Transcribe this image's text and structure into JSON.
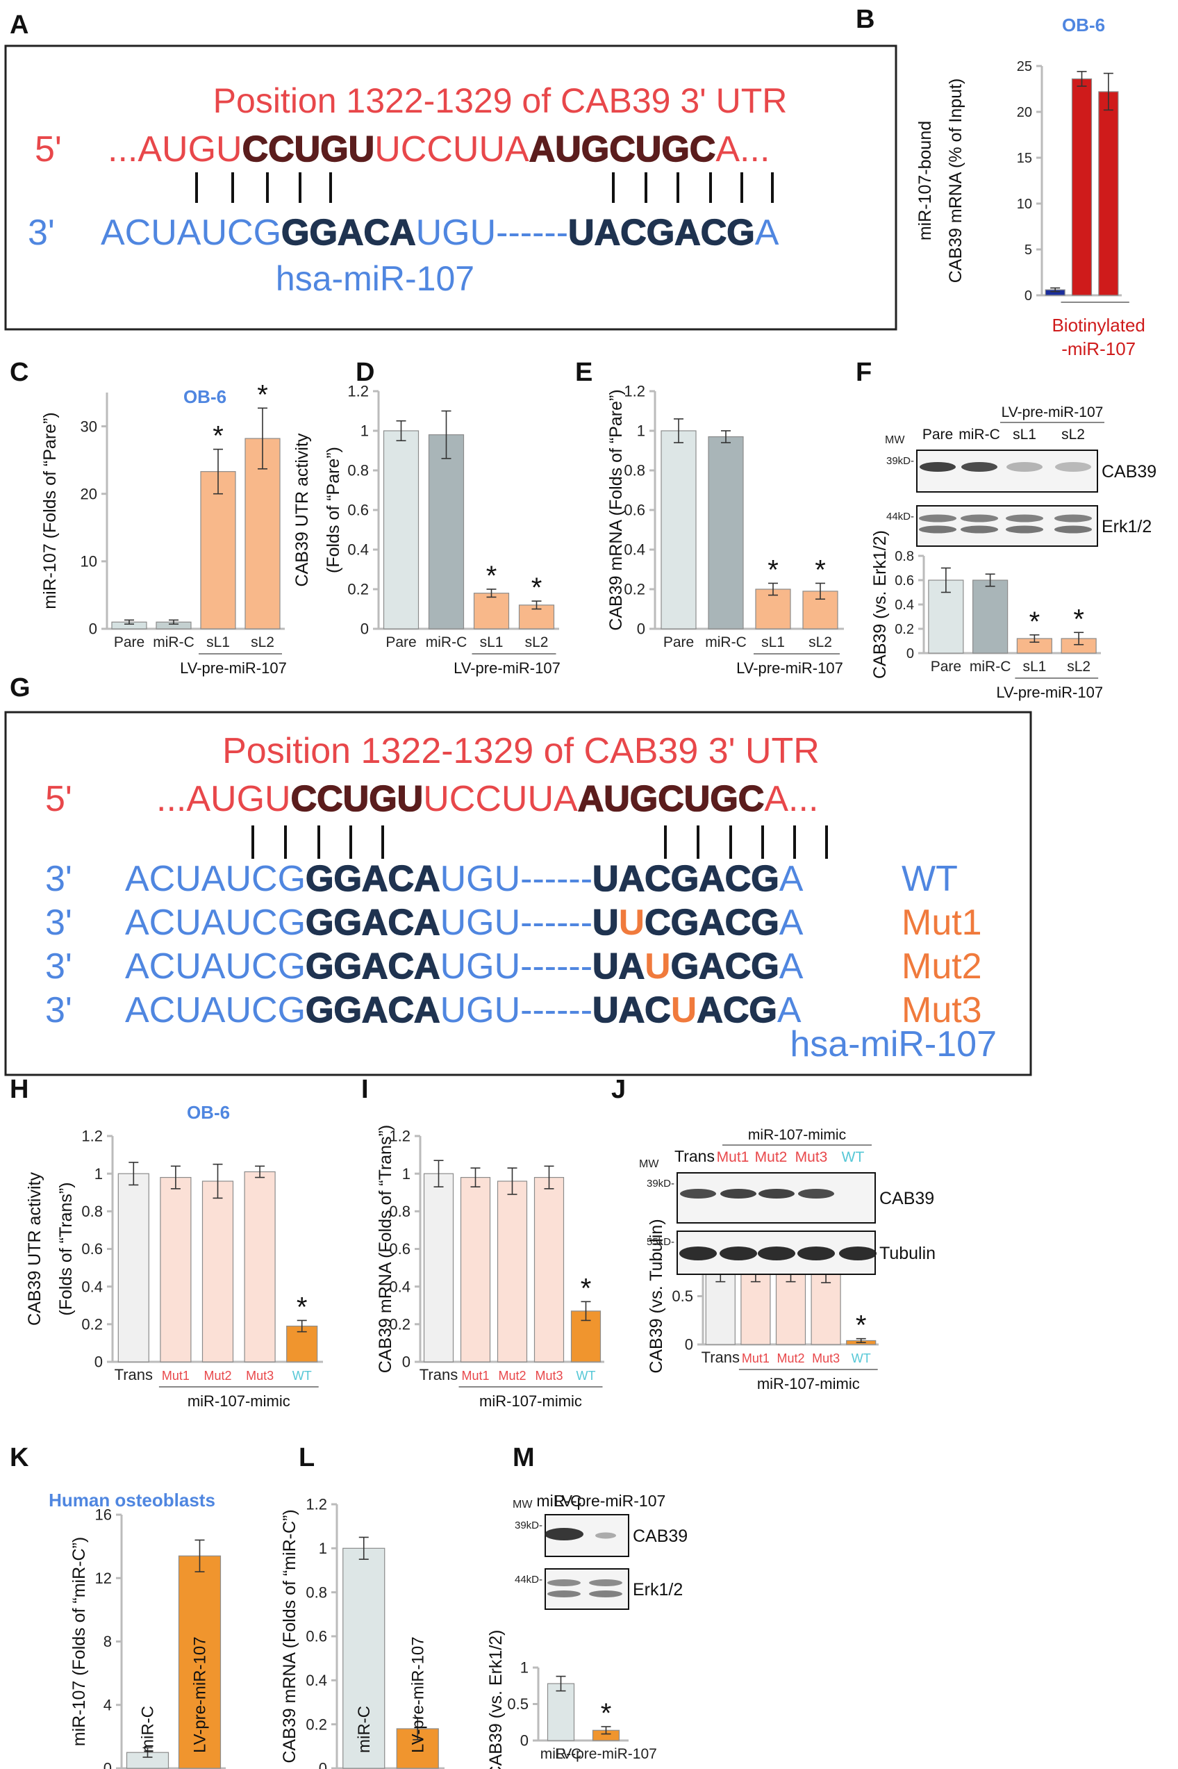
{
  "colors": {
    "red": "#e8474a",
    "blue": "#4f86e0",
    "orange": "#f07a3c",
    "seqDark": "#1f3350",
    "seqRed": "#5b1d1d",
    "cyan": "#55c7d6",
    "darkred": "#cf1b1b",
    "navy": "#1b2e9c"
  },
  "panel_letters": [
    "A",
    "B",
    "C",
    "D",
    "E",
    "F",
    "G",
    "H",
    "I",
    "J",
    "K",
    "L",
    "M"
  ],
  "cell_labels": {
    "ob6": "OB-6",
    "human": "Human osteoblasts"
  },
  "seq": {
    "title": "Position 1322-1329 of CAB39 3' UTR",
    "five": "5'",
    "three": "3'",
    "utr_pre": "...AUGU",
    "utr_s1": "CCUGU",
    "utr_mid": "UCCUUA",
    "utr_s2": "AUGCUGC",
    "utr_post": "A...",
    "mir_pre": "ACUAUCG",
    "mir_s1": "GGACA",
    "mir_mid": "UGU------",
    "mir_s2": "UACGACG",
    "mir_post": "A",
    "mir_name": "hsa-miR-107",
    "wt": "WT",
    "mut_rows": [
      {
        "name": "Mut1",
        "s2a": "U",
        "s2b": "U",
        "s2c": "CGACG"
      },
      {
        "name": "Mut2",
        "s2a": "UA",
        "s2b": "U",
        "s2c": "GACG"
      },
      {
        "name": "Mut3",
        "s2a": "UAC",
        "s2b": "U",
        "s2c": "ACG"
      }
    ]
  },
  "chart_data": [
    {
      "panel": "B",
      "type": "bar",
      "title": "OB-6",
      "categories": [
        "",
        "",
        ""
      ],
      "values": [
        0.6,
        23.6,
        22.2
      ],
      "errors": [
        0.2,
        0.8,
        2.0
      ],
      "ylim": [
        0,
        25
      ],
      "ticks": [
        0,
        5,
        10,
        15,
        20,
        25
      ],
      "ylabel": [
        "miR-107-bound",
        "CAB39 mRNA (% of Input)"
      ],
      "group_label": [
        "Biotinylated",
        "-miR-107"
      ],
      "colors": [
        "#1b2e9c",
        "#cf1b1b",
        "#cf1b1b"
      ]
    },
    {
      "panel": "C",
      "type": "bar",
      "title": "OB-6",
      "categories": [
        "Pare",
        "miR-C",
        "sL1",
        "sL2"
      ],
      "values": [
        1.0,
        1.0,
        23.3,
        28.2
      ],
      "errors": [
        0.3,
        0.3,
        3.3,
        4.5
      ],
      "ylim": [
        0,
        35
      ],
      "ticks": [
        0,
        10,
        20,
        30
      ],
      "ylabel": [
        "miR-107 (Folds of “Pare”)"
      ],
      "group_label": "LV-pre-miR-107",
      "stars": [
        false,
        false,
        true,
        true
      ]
    },
    {
      "panel": "D",
      "type": "bar",
      "categories": [
        "Pare",
        "miR-C",
        "sL1",
        "sL2"
      ],
      "values": [
        1.0,
        0.98,
        0.18,
        0.12
      ],
      "errors": [
        0.05,
        0.12,
        0.02,
        0.02
      ],
      "ylim": [
        0,
        1.2
      ],
      "ticks": [
        "0",
        "0.2",
        "0.4",
        "0.6",
        "0.8",
        "1",
        "1.2"
      ],
      "ylabel": [
        "CAB39 UTR activity",
        "(Folds of “Pare”)"
      ],
      "group_label": "LV-pre-miR-107",
      "stars": [
        false,
        false,
        true,
        true
      ]
    },
    {
      "panel": "E",
      "type": "bar",
      "categories": [
        "Pare",
        "miR-C",
        "sL1",
        "sL2"
      ],
      "values": [
        1.0,
        0.97,
        0.2,
        0.19
      ],
      "errors": [
        0.06,
        0.03,
        0.03,
        0.04
      ],
      "ylim": [
        0,
        1.2
      ],
      "ticks": [
        "0",
        "0.2",
        "0.4",
        "0.6",
        "0.8",
        "1",
        "1.2"
      ],
      "ylabel": [
        "CAB39 mRNA (Folds of “Pare”)"
      ],
      "group_label": "LV-pre-miR-107",
      "stars": [
        false,
        false,
        true,
        true
      ]
    },
    {
      "panel": "F",
      "type": "bar",
      "categories": [
        "Pare",
        "miR-C",
        "sL1",
        "sL2"
      ],
      "values": [
        0.6,
        0.6,
        0.12,
        0.12
      ],
      "errors": [
        0.1,
        0.05,
        0.03,
        0.05
      ],
      "ylim": [
        0,
        0.8
      ],
      "ticks": [
        "0",
        "0.2",
        "0.4",
        "0.6",
        "0.8"
      ],
      "ylabel": [
        "CAB39 (vs. Erk1/2)"
      ],
      "group_label": "LV-pre-miR-107",
      "stars": [
        false,
        false,
        true,
        true
      ]
    },
    {
      "panel": "H",
      "type": "bar",
      "title": "OB-6",
      "categories": [
        "Trans",
        "Mut1",
        "Mut2",
        "Mut3",
        "WT"
      ],
      "values": [
        1.0,
        0.98,
        0.96,
        1.01,
        0.19
      ],
      "errors": [
        0.06,
        0.06,
        0.09,
        0.03,
        0.03
      ],
      "ylim": [
        0,
        1.2
      ],
      "ticks": [
        "0",
        "0.2",
        "0.4",
        "0.6",
        "0.8",
        "1",
        "1.2"
      ],
      "ylabel": [
        "CAB39 UTR activity",
        "(Folds of “Trans”)"
      ],
      "group_label": "miR-107-mimic",
      "stars": [
        false,
        false,
        false,
        false,
        true
      ]
    },
    {
      "panel": "I",
      "type": "bar",
      "categories": [
        "Trans",
        "Mut1",
        "Mut2",
        "Mut3",
        "WT"
      ],
      "values": [
        1.0,
        0.98,
        0.96,
        0.98,
        0.27
      ],
      "errors": [
        0.07,
        0.05,
        0.07,
        0.06,
        0.05
      ],
      "ylim": [
        0,
        1.2
      ],
      "ticks": [
        "0",
        "0.2",
        "0.4",
        "0.6",
        "0.8",
        "1",
        "1.2"
      ],
      "ylabel": [
        "CAB39 mRNA (Folds of “Trans”)"
      ],
      "group_label": "miR-107-mimic",
      "stars": [
        false,
        false,
        false,
        false,
        true
      ]
    },
    {
      "panel": "J",
      "type": "bar",
      "categories": [
        "Trans",
        "Mut1",
        "Mut2",
        "Mut3",
        "WT"
      ],
      "values": [
        0.78,
        0.76,
        0.77,
        0.73,
        0.04
      ],
      "errors": [
        0.13,
        0.11,
        0.12,
        0.09,
        0.02
      ],
      "ylim": [
        0,
        1
      ],
      "ticks": [
        "0",
        "0.5",
        "1"
      ],
      "ylabel": [
        "CAB39 (vs. Tubulin)"
      ],
      "group_label": "miR-107-mimic",
      "stars": [
        false,
        false,
        false,
        false,
        true
      ]
    },
    {
      "panel": "K",
      "type": "bar",
      "title": "Human osteoblasts",
      "categories": [
        "miR-C",
        "LV-pre-miR-107"
      ],
      "values": [
        1.0,
        13.4
      ],
      "errors": [
        0.3,
        1.0
      ],
      "ylim": [
        0,
        16
      ],
      "ticks": [
        "0",
        "4",
        "8",
        "12",
        "16"
      ],
      "ylabel": [
        "miR-107 (Folds of “miR-C”)"
      ],
      "stars": [
        false,
        false
      ]
    },
    {
      "panel": "L",
      "type": "bar",
      "categories": [
        "miR-C",
        "LV-pre-miR-107"
      ],
      "values": [
        1.0,
        0.18
      ],
      "errors": [
        0.05,
        0.05
      ],
      "ylim": [
        0,
        1.2
      ],
      "ticks": [
        "0",
        "0.2",
        "0.4",
        "0.6",
        "0.8",
        "1",
        "1.2"
      ],
      "ylabel": [
        "CAB39 mRNA (Folds of “miR-C”)"
      ],
      "stars": [
        false,
        false
      ]
    },
    {
      "panel": "M",
      "type": "bar",
      "categories": [
        "miR-C",
        "LV-pre-miR-107"
      ],
      "values": [
        0.78,
        0.14
      ],
      "errors": [
        0.1,
        0.05
      ],
      "ylim": [
        0,
        1
      ],
      "ticks": [
        "0",
        "0.5",
        "1"
      ],
      "ylabel": [
        "CAB39 (vs. Erk1/2)"
      ],
      "stars": [
        false,
        true
      ]
    }
  ],
  "blots": {
    "F": {
      "mw": "MW",
      "group": "LV-pre-miR-107",
      "lanes": [
        "Pare",
        "miR-C",
        "sL1",
        "sL2"
      ],
      "rows": [
        {
          "mw": "39kD-",
          "label": "CAB39"
        },
        {
          "mw": "44kD-",
          "label": "Erk1/2"
        }
      ]
    },
    "J": {
      "mw": "MW",
      "group": "miR-107-mimic",
      "lanes": [
        "Trans",
        "Mut1",
        "Mut2",
        "Mut3",
        "WT"
      ],
      "rows": [
        {
          "mw": "39kD-",
          "label": "CAB39"
        },
        {
          "mw": "55kD-",
          "label": "Tubulin"
        }
      ]
    },
    "M": {
      "mw": "MW",
      "lanes": [
        "miR-C",
        "LV-pre-miR-107"
      ],
      "rows": [
        {
          "mw": "39kD-",
          "label": "CAB39"
        },
        {
          "mw": "44kD-",
          "label": "Erk1/2"
        }
      ]
    }
  },
  "star": "*"
}
